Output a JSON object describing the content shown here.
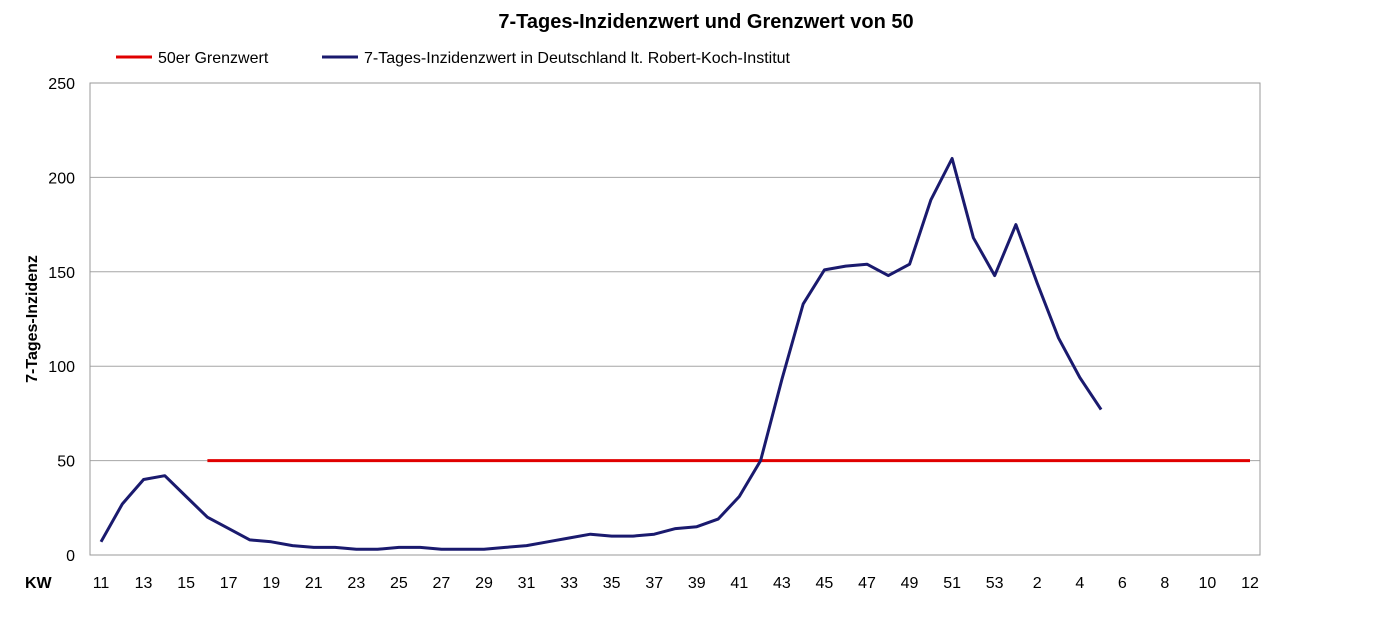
{
  "chart_data": {
    "type": "line",
    "title": "7-Tages-Inzidenzwert und Grenzwert von 50",
    "ylabel": "7-Tages-Inzidenz",
    "xlabel": "KW",
    "ylim": [
      0,
      250
    ],
    "yticks": [
      0,
      50,
      100,
      150,
      200,
      250
    ],
    "grid": true,
    "legend_position": "top",
    "categories": [
      "11",
      "12",
      "13",
      "14",
      "15",
      "16",
      "17",
      "18",
      "19",
      "20",
      "21",
      "22",
      "23",
      "24",
      "25",
      "26",
      "27",
      "28",
      "29",
      "30",
      "31",
      "32",
      "33",
      "34",
      "35",
      "36",
      "37",
      "38",
      "39",
      "40",
      "41",
      "42",
      "43",
      "44",
      "45",
      "46",
      "47",
      "48",
      "49",
      "50",
      "51",
      "52",
      "53",
      "1",
      "2",
      "3",
      "4",
      "5",
      "6",
      "7",
      "8",
      "9",
      "10",
      "11",
      "12"
    ],
    "x_tick_labels": [
      "11",
      "13",
      "15",
      "17",
      "19",
      "21",
      "23",
      "25",
      "27",
      "29",
      "31",
      "33",
      "35",
      "37",
      "39",
      "41",
      "43",
      "45",
      "47",
      "49",
      "51",
      "53",
      "2",
      "4",
      "6",
      "8",
      "10",
      "12"
    ],
    "series": [
      {
        "name": "50er Grenzwert",
        "color": "#e00000",
        "values": [
          null,
          null,
          null,
          null,
          null,
          50,
          50,
          50,
          50,
          50,
          50,
          50,
          50,
          50,
          50,
          50,
          50,
          50,
          50,
          50,
          50,
          50,
          50,
          50,
          50,
          50,
          50,
          50,
          50,
          50,
          50,
          50,
          50,
          50,
          50,
          50,
          50,
          50,
          50,
          50,
          50,
          50,
          50,
          50,
          50,
          50,
          50,
          50,
          50,
          50,
          50,
          50,
          50,
          50,
          50
        ]
      },
      {
        "name": "7-Tages-Inzidenzwert in Deutschland lt. Robert-Koch-Institut",
        "color": "#1a1a6e",
        "values": [
          7,
          27,
          40,
          42,
          31,
          20,
          14,
          8,
          7,
          5,
          4,
          4,
          3,
          3,
          4,
          4,
          3,
          3,
          3,
          4,
          5,
          7,
          9,
          11,
          10,
          10,
          11,
          14,
          15,
          19,
          31,
          50,
          93,
          133,
          151,
          153,
          154,
          148,
          154,
          188,
          210,
          168,
          148,
          175,
          144,
          115,
          94,
          77,
          null,
          null,
          null,
          null,
          null,
          null,
          null
        ]
      }
    ]
  }
}
